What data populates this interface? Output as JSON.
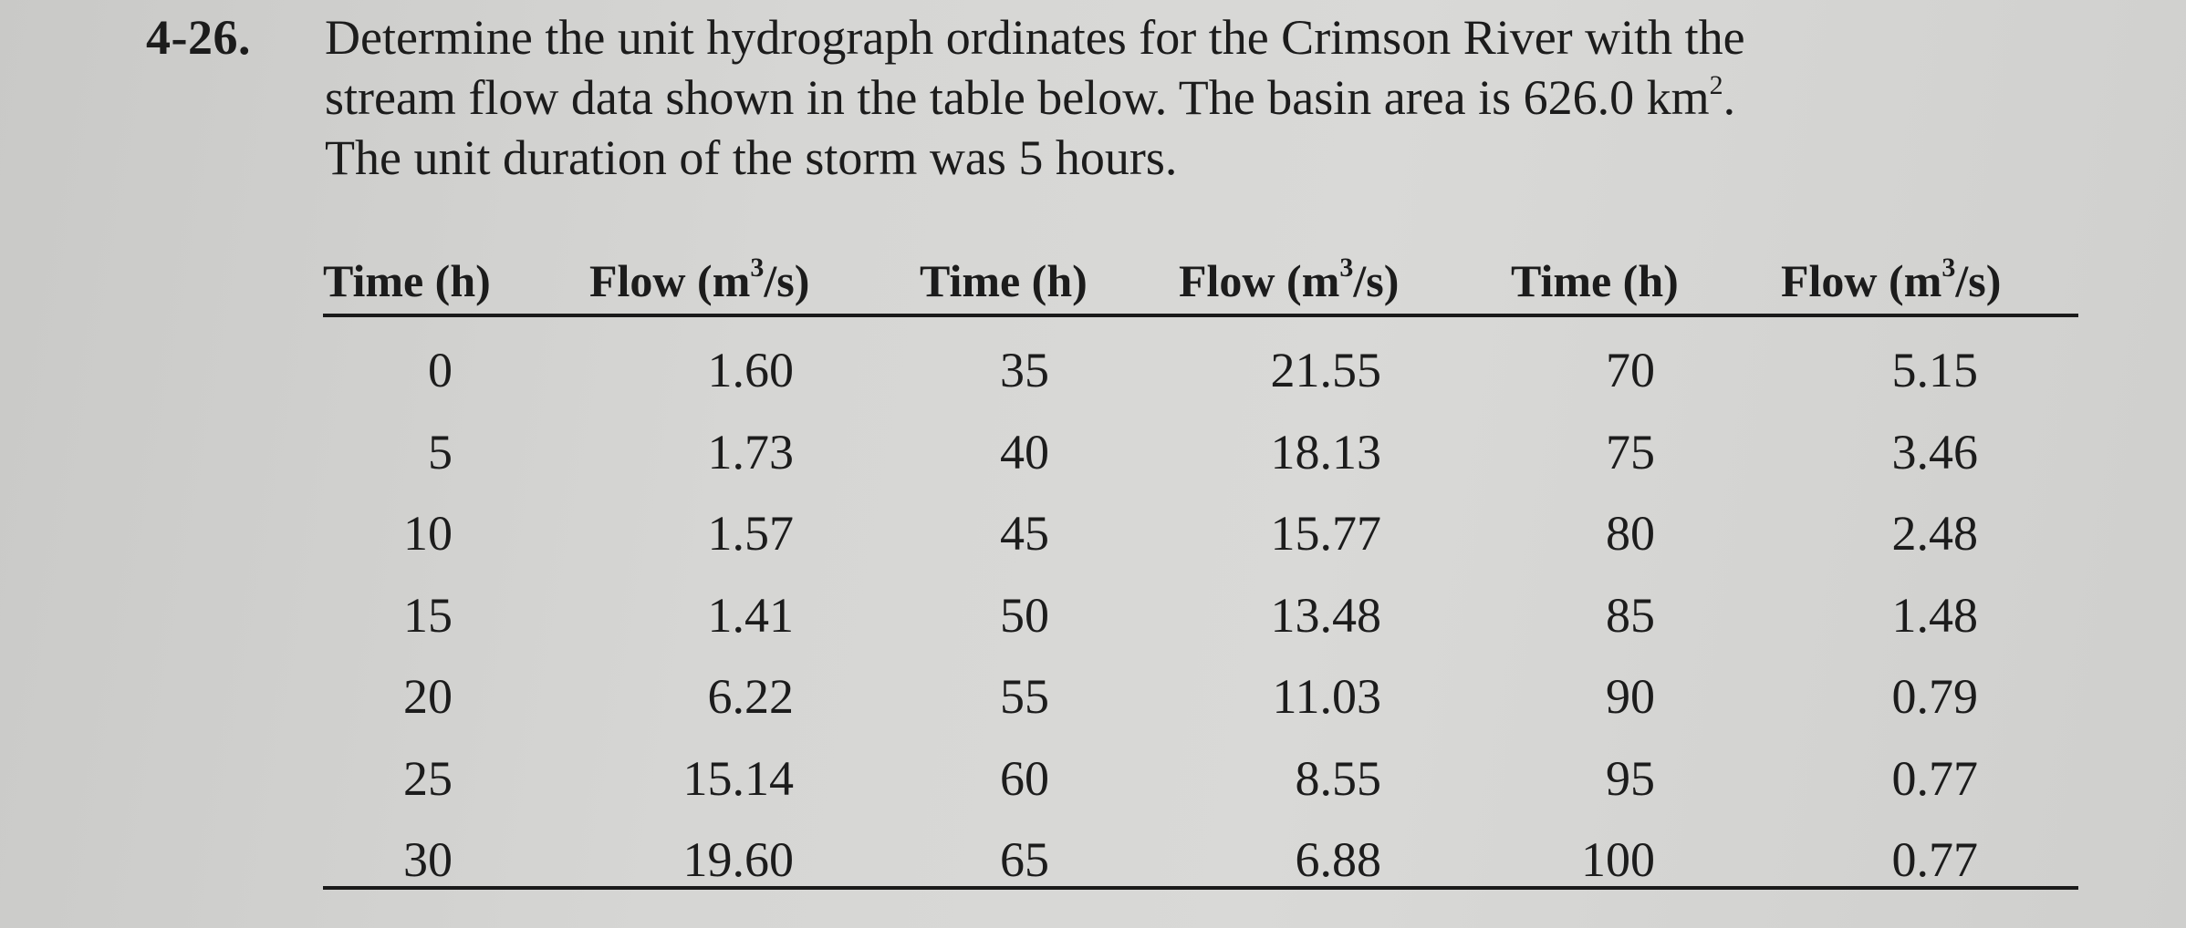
{
  "problem": {
    "number": "4-26.",
    "lines": [
      "Determine the unit hydrograph ordinates for the Crimson River with the",
      "stream flow data shown in the table below. The basin area is 626.0 km",
      "The unit duration of the storm was 5 hours."
    ],
    "area_exponent": "2",
    "line2_end": "."
  },
  "table": {
    "headers": [
      {
        "label": "Time (h)"
      },
      {
        "label": "Flow (m",
        "sup": "3",
        "after": "/s)"
      },
      {
        "label": "Time (h)"
      },
      {
        "label": "Flow (m",
        "sup": "3",
        "after": "/s)"
      },
      {
        "label": "Time (h)"
      },
      {
        "label": "Flow (m",
        "sup": "3",
        "after": "/s)"
      }
    ],
    "rows": [
      [
        "0",
        "1.60",
        "35",
        "21.55",
        "70",
        "5.15"
      ],
      [
        "5",
        "1.73",
        "40",
        "18.13",
        "75",
        "3.46"
      ],
      [
        "10",
        "1.57",
        "45",
        "15.77",
        "80",
        "2.48"
      ],
      [
        "15",
        "1.41",
        "50",
        "13.48",
        "85",
        "1.48"
      ],
      [
        "20",
        "6.22",
        "55",
        "11.03",
        "90",
        "0.79"
      ],
      [
        "25",
        "15.14",
        "60",
        "8.55",
        "95",
        "0.77"
      ],
      [
        "30",
        "19.60",
        "65",
        "6.88",
        "100",
        "0.77"
      ]
    ]
  }
}
